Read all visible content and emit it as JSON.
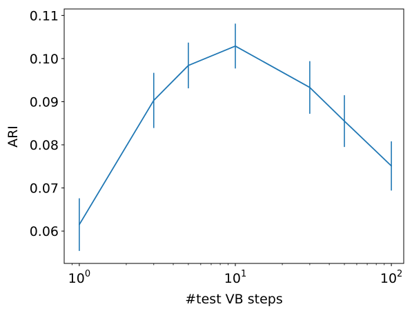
{
  "chart_data": {
    "type": "line",
    "title": "",
    "xlabel": "#test VB steps",
    "ylabel": "ARI",
    "x_scale": "log",
    "xlim": [
      0.8,
      120
    ],
    "ylim": [
      0.0525,
      0.1115
    ],
    "grid": false,
    "x_ticks": [
      {
        "value": 1,
        "base": "10",
        "exp": "0"
      },
      {
        "value": 10,
        "base": "10",
        "exp": "1"
      },
      {
        "value": 100,
        "base": "10",
        "exp": "2"
      }
    ],
    "y_ticks": [
      {
        "value": 0.06,
        "label": "0.06"
      },
      {
        "value": 0.07,
        "label": "0.07"
      },
      {
        "value": 0.08,
        "label": "0.08"
      },
      {
        "value": 0.09,
        "label": "0.09"
      },
      {
        "value": 0.1,
        "label": "0.10"
      },
      {
        "value": 0.11,
        "label": "0.11"
      }
    ],
    "series": [
      {
        "color": "#1f77b4",
        "x": [
          1,
          3,
          5,
          10,
          30,
          50,
          100
        ],
        "y": [
          0.0615,
          0.0903,
          0.0984,
          0.1029,
          0.0933,
          0.0855,
          0.0751
        ],
        "yerr": [
          0.0061,
          0.0064,
          0.0053,
          0.0052,
          0.0061,
          0.006,
          0.0057
        ]
      }
    ]
  }
}
